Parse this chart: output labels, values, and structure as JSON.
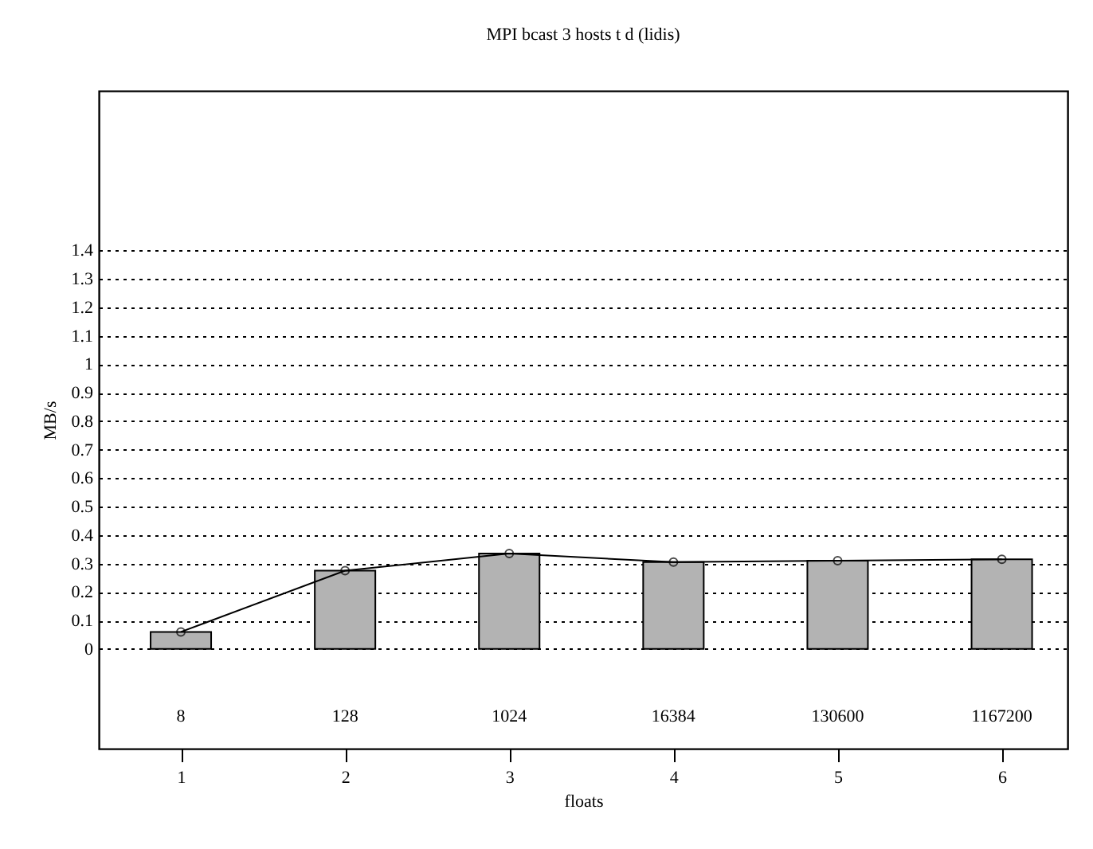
{
  "chart_data": {
    "type": "bar",
    "title": "MPI bcast 3 hosts t d (lidis)",
    "xlabel": "floats",
    "ylabel": "MB/s",
    "x": [
      1,
      2,
      3,
      4,
      5,
      6
    ],
    "series": [
      {
        "color": "#b3b3b3",
        "values": [
          0.06,
          0.275,
          0.335,
          0.305,
          0.31,
          0.315
        ]
      },
      {
        "type": "line",
        "color": "#000000",
        "values": [
          0.06,
          0.275,
          0.335,
          0.305,
          0.31,
          0.315
        ]
      }
    ],
    "annotations": [
      "8",
      "128",
      "1024",
      "16384",
      "130600",
      "1167200"
    ],
    "xlim": [
      0.5,
      6.4
    ],
    "xticks": [
      1,
      2,
      3,
      4,
      5,
      6
    ],
    "ylim": [
      -0.35,
      1.96
    ],
    "yticks": [
      0,
      0.1,
      0.2,
      0.3,
      0.4,
      0.5,
      0.6,
      0.7,
      0.8,
      0.9,
      1,
      1.1,
      1.2,
      1.3,
      1.4
    ],
    "grid": "y",
    "marker": "circle",
    "line_style": "solid"
  }
}
